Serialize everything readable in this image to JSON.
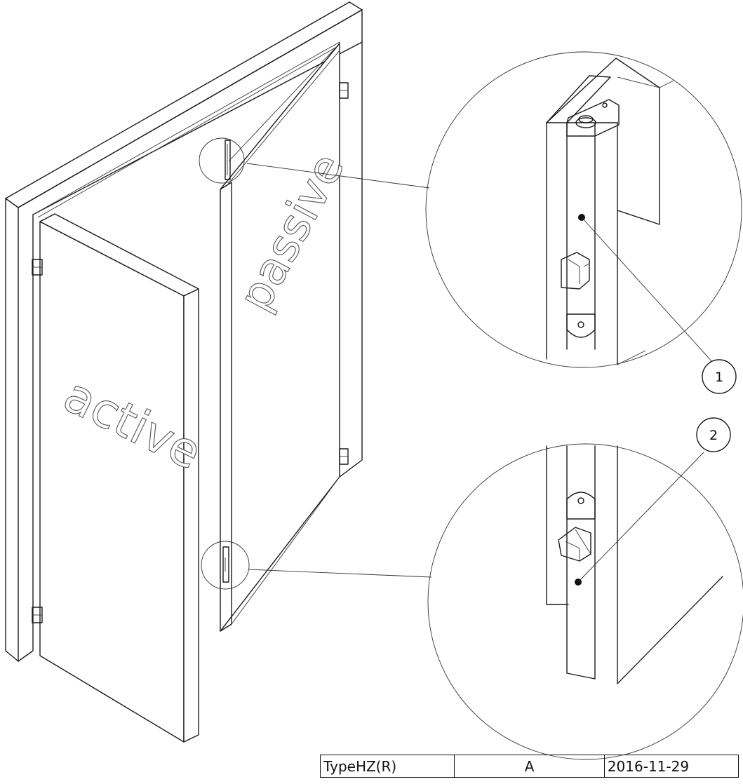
{
  "door_labels": {
    "active": "active",
    "passive": "passive"
  },
  "callouts": [
    {
      "number": "1"
    },
    {
      "number": "2"
    }
  ],
  "title_block": {
    "type": "TypeHZ(R)",
    "revision": "A",
    "date": "2016-11-29"
  }
}
